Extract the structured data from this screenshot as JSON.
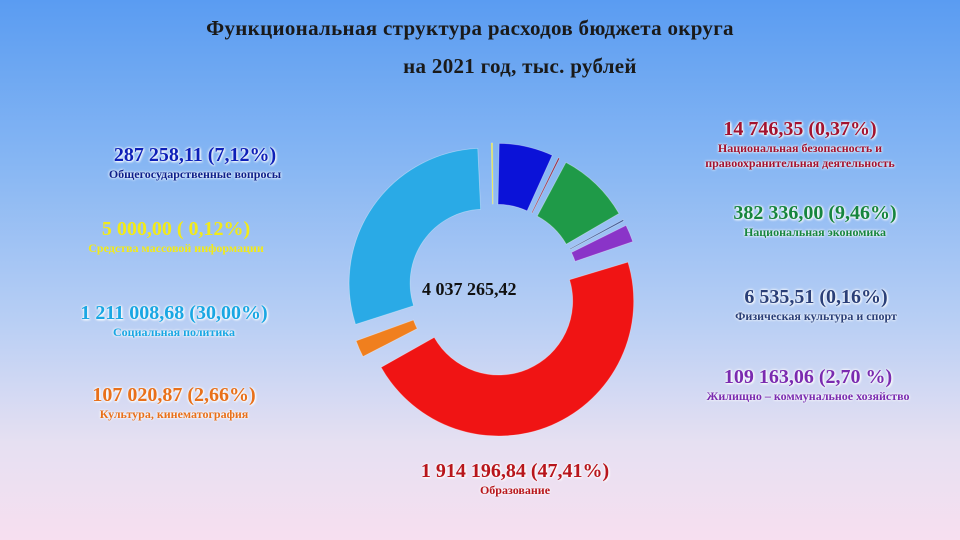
{
  "header": {
    "title_line1": "Функциональная структура расходов бюджета округа",
    "title_line2": "на 2021 год, тыс. рублей"
  },
  "chart_data": {
    "type": "pie",
    "variant": "donut",
    "title": "Функциональная структура расходов бюджета округа на 2021 год, тыс. рублей",
    "total": "4 037 265,42",
    "slices": [
      {
        "name": "Общегосударственные вопросы",
        "value": 287258.11,
        "percent": 7.12,
        "label": "287 258,11 (7,12%)",
        "color": "#0b12d8"
      },
      {
        "name": "Национальная безопасность и правоохранительная деятельность",
        "value": 14746.35,
        "percent": 0.37,
        "label": "14 746,35 (0,37%)",
        "color": "#8b1e3a"
      },
      {
        "name": "Национальная экономика",
        "value": 382336.0,
        "percent": 9.46,
        "label": "382 336,00 (9,46%)",
        "color": "#1f9a48"
      },
      {
        "name": "Физическая культура и спорт",
        "value": 6535.51,
        "percent": 0.16,
        "label": "6 535,51 (0,16%)",
        "color": "#2e4a8a"
      },
      {
        "name": "Жилищно – коммунальное хозяйство",
        "value": 109163.06,
        "percent": 2.7,
        "label": "109 163,06 (2,70 %)",
        "color": "#8a34c8"
      },
      {
        "name": "Образование",
        "value": 1914196.84,
        "percent": 47.41,
        "label": "1 914 196,84 (47,41%)",
        "color": "#f01414"
      },
      {
        "name": "Культура, кинематография",
        "value": 107020.87,
        "percent": 2.66,
        "label": "107 020,87 (2,66%)",
        "color": "#f07f1e"
      },
      {
        "name": "Социальная политика",
        "value": 1211008.68,
        "percent": 30.0,
        "label": "1 211 008,68 (30,00%)",
        "color": "#2aaae6"
      },
      {
        "name": "Средства массовой информации",
        "value": 5000.0,
        "percent": 0.12,
        "label": "5 000,00 ( 0,12%)",
        "color": "#e9e321"
      }
    ]
  },
  "labels": {
    "gen": {
      "value": "287 258,11 (7,12%)",
      "name": "Общегосударственные вопросы"
    },
    "media": {
      "value": "5 000,00 ( 0,12%)",
      "name": "Средства массовой информации"
    },
    "soc": {
      "value": "1 211 008,68 (30,00%)",
      "name": "Социальная политика"
    },
    "cult": {
      "value": "107 020,87 (2,66%)",
      "name": "Культура, кинематография"
    },
    "sec": {
      "value": "14 746,35 (0,37%)",
      "name1": "Национальная безопасность и",
      "name2": "правоохранительная деятельность"
    },
    "econ": {
      "value": "382 336,00 (9,46%)",
      "name": "Национальная экономика"
    },
    "sport": {
      "value": "6 535,51 (0,16%)",
      "name": "Физическая культура и спорт"
    },
    "hous": {
      "value": "109 163,06 (2,70 %)",
      "name": "Жилищно – коммунальное хозяйство"
    },
    "edu": {
      "value": "1 914 196,84 (47,41%)",
      "name": "Образование"
    }
  }
}
